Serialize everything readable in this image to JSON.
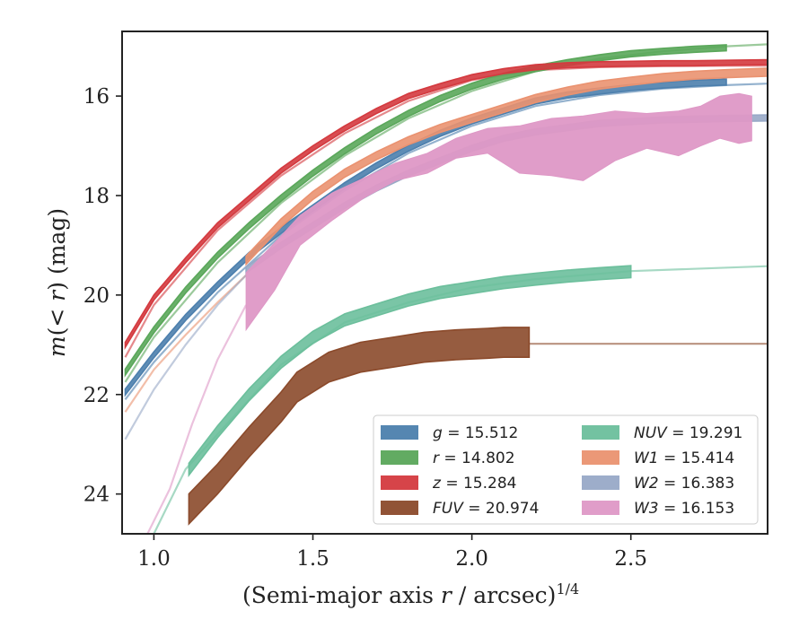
{
  "chart_data": {
    "type": "line",
    "xlabel": "(Semi-major axis r / arcsec)^1/4",
    "ylabel": "m(< r) (mag)",
    "xlim": [
      0.9,
      2.93
    ],
    "ylim": [
      24.8,
      14.7
    ],
    "y_inverted": true,
    "x_ticks": [
      "1.0",
      "1.5",
      "2.0",
      "2.5"
    ],
    "y_ticks": [
      "16",
      "18",
      "20",
      "22",
      "24"
    ],
    "legend_placement": "lower-right",
    "grid": false,
    "series": [
      {
        "name": "g = 15.512",
        "key": "g",
        "color": "#4c7fad",
        "data_x": [
          0.91,
          1.0,
          1.1,
          1.2,
          1.3,
          1.4,
          1.5,
          1.6,
          1.7,
          1.8,
          1.9,
          2.0,
          2.1,
          2.2,
          2.3,
          2.4,
          2.5,
          2.6,
          2.7,
          2.8
        ],
        "data_y": [
          21.95,
          21.2,
          20.45,
          19.8,
          19.2,
          18.7,
          18.25,
          17.8,
          17.4,
          17.05,
          16.75,
          16.5,
          16.3,
          16.1,
          15.98,
          15.9,
          15.83,
          15.78,
          15.74,
          15.72
        ],
        "model_x": [
          0.91,
          1.0,
          1.2,
          1.4,
          1.6,
          1.8,
          2.0,
          2.2,
          2.4,
          2.6,
          2.8,
          2.93
        ],
        "model_y": [
          22.1,
          21.35,
          19.95,
          18.8,
          17.9,
          17.15,
          16.6,
          16.2,
          15.98,
          15.85,
          15.78,
          15.75
        ],
        "band_width": 0.06
      },
      {
        "name": "r = 14.802",
        "key": "r",
        "color": "#5aa75a",
        "data_x": [
          0.91,
          1.0,
          1.1,
          1.2,
          1.3,
          1.4,
          1.5,
          1.6,
          1.7,
          1.8,
          1.9,
          2.0,
          2.1,
          2.2,
          2.3,
          2.4,
          2.5,
          2.6,
          2.7,
          2.8
        ],
        "data_y": [
          21.55,
          20.7,
          19.9,
          19.2,
          18.6,
          18.05,
          17.55,
          17.1,
          16.7,
          16.35,
          16.05,
          15.8,
          15.6,
          15.45,
          15.33,
          15.23,
          15.15,
          15.1,
          15.06,
          15.03
        ],
        "model_x": [
          0.91,
          1.0,
          1.2,
          1.4,
          1.6,
          1.8,
          2.0,
          2.2,
          2.4,
          2.6,
          2.8,
          2.93
        ],
        "model_y": [
          21.75,
          20.85,
          19.35,
          18.15,
          17.2,
          16.45,
          15.9,
          15.5,
          15.25,
          15.1,
          15.0,
          14.96
        ],
        "band_width": 0.06
      },
      {
        "name": "z = 15.284",
        "key": "z",
        "color": "#d43a3f",
        "data_x": [
          0.91,
          1.0,
          1.1,
          1.2,
          1.3,
          1.4,
          1.5,
          1.6,
          1.7,
          1.8,
          1.9,
          2.0,
          2.1,
          2.2,
          2.3,
          2.4,
          2.5,
          2.6,
          2.7,
          2.8,
          2.93
        ],
        "data_y": [
          21.0,
          20.05,
          19.3,
          18.6,
          18.05,
          17.5,
          17.05,
          16.65,
          16.3,
          16.0,
          15.8,
          15.62,
          15.5,
          15.42,
          15.38,
          15.36,
          15.35,
          15.34,
          15.34,
          15.33,
          15.32
        ],
        "model_x": [
          0.91,
          1.0,
          1.2,
          1.4,
          1.6,
          1.8,
          2.0,
          2.2,
          2.4,
          2.6,
          2.8,
          2.93
        ],
        "model_y": [
          21.25,
          20.2,
          18.7,
          17.6,
          16.75,
          16.1,
          15.68,
          15.48,
          15.42,
          15.4,
          15.39,
          15.39
        ],
        "band_width": 0.05
      },
      {
        "name": "FUV = 20.974",
        "key": "FUV",
        "color": "#8b4a2b",
        "data_x": [
          1.11,
          1.2,
          1.3,
          1.4,
          1.45,
          1.55,
          1.65,
          1.75,
          1.85,
          1.95,
          2.05,
          2.1,
          2.18
        ],
        "data_y": [
          24.3,
          23.7,
          22.95,
          22.25,
          21.85,
          21.45,
          21.25,
          21.15,
          21.05,
          21.0,
          20.97,
          20.95,
          20.95
        ],
        "band_width": 0.3,
        "model_x": [
          2.18,
          2.93
        ],
        "model_y": [
          20.98,
          20.98
        ]
      },
      {
        "name": "NUV = 19.291",
        "key": "NUV",
        "color": "#6cbf9c",
        "data_x": [
          1.11,
          1.2,
          1.3,
          1.4,
          1.5,
          1.6,
          1.7,
          1.8,
          1.9,
          2.0,
          2.1,
          2.2,
          2.3,
          2.4,
          2.5
        ],
        "data_y": [
          23.5,
          22.75,
          22.0,
          21.35,
          20.85,
          20.5,
          20.3,
          20.1,
          19.95,
          19.85,
          19.75,
          19.68,
          19.62,
          19.57,
          19.53
        ],
        "band_width": 0.12,
        "model_x": [
          1.0,
          1.1,
          1.2,
          1.4,
          1.6,
          1.8,
          2.0,
          2.2,
          2.5,
          2.93
        ],
        "model_y": [
          24.8,
          23.5,
          22.8,
          21.4,
          20.55,
          20.15,
          19.85,
          19.68,
          19.52,
          19.42
        ]
      },
      {
        "name": "W1 = 15.414",
        "key": "W1",
        "color": "#ea9270",
        "data_x": [
          1.29,
          1.4,
          1.5,
          1.6,
          1.7,
          1.8,
          1.9,
          2.0,
          2.1,
          2.2,
          2.3,
          2.4,
          2.5,
          2.6,
          2.7,
          2.8,
          2.93
        ],
        "data_y": [
          19.3,
          18.55,
          18.0,
          17.55,
          17.2,
          16.9,
          16.65,
          16.45,
          16.25,
          16.05,
          15.9,
          15.78,
          15.7,
          15.63,
          15.58,
          15.55,
          15.52
        ],
        "band_width": 0.08,
        "model_x": [
          0.91,
          1.0,
          1.1,
          1.2,
          1.29
        ],
        "model_y": [
          22.35,
          21.5,
          20.8,
          20.15,
          19.6
        ]
      },
      {
        "name": "W2 = 16.383",
        "key": "W2",
        "color": "#98a9c7",
        "data_x": [
          1.29,
          1.4,
          1.5,
          1.6,
          1.7,
          1.8,
          1.9,
          2.0,
          2.1,
          2.2,
          2.4,
          2.6,
          2.8,
          2.93
        ],
        "data_y": [
          19.5,
          19.0,
          18.6,
          18.2,
          17.85,
          17.55,
          17.3,
          17.05,
          16.85,
          16.72,
          16.55,
          16.48,
          16.45,
          16.44
        ],
        "band_width": 0.06,
        "model_x": [
          0.91,
          1.0,
          1.1,
          1.2,
          1.29
        ],
        "model_y": [
          22.9,
          21.9,
          21.0,
          20.2,
          19.6
        ]
      },
      {
        "name": "W3 = 16.153",
        "key": "W3",
        "color": "#de98c6",
        "band_x": [
          1.29,
          1.38,
          1.46,
          1.56,
          1.66,
          1.76,
          1.86,
          1.95,
          2.05,
          2.15,
          2.25,
          2.35,
          2.45,
          2.55,
          2.65,
          2.72,
          2.78,
          2.84,
          2.88
        ],
        "band_lo": [
          20.7,
          19.9,
          19.0,
          18.5,
          18.05,
          17.7,
          17.55,
          17.25,
          17.15,
          17.55,
          17.6,
          17.7,
          17.3,
          17.05,
          17.2,
          17.0,
          16.85,
          16.95,
          16.9
        ],
        "band_hi": [
          19.55,
          18.95,
          18.4,
          17.95,
          17.65,
          17.35,
          17.15,
          16.85,
          16.65,
          16.6,
          16.45,
          16.4,
          16.3,
          16.35,
          16.3,
          16.2,
          16.0,
          15.95,
          16.0
        ],
        "model_x": [
          0.98,
          1.05,
          1.12,
          1.2,
          1.29
        ],
        "model_y": [
          24.8,
          23.9,
          22.6,
          21.3,
          20.2
        ]
      }
    ]
  }
}
